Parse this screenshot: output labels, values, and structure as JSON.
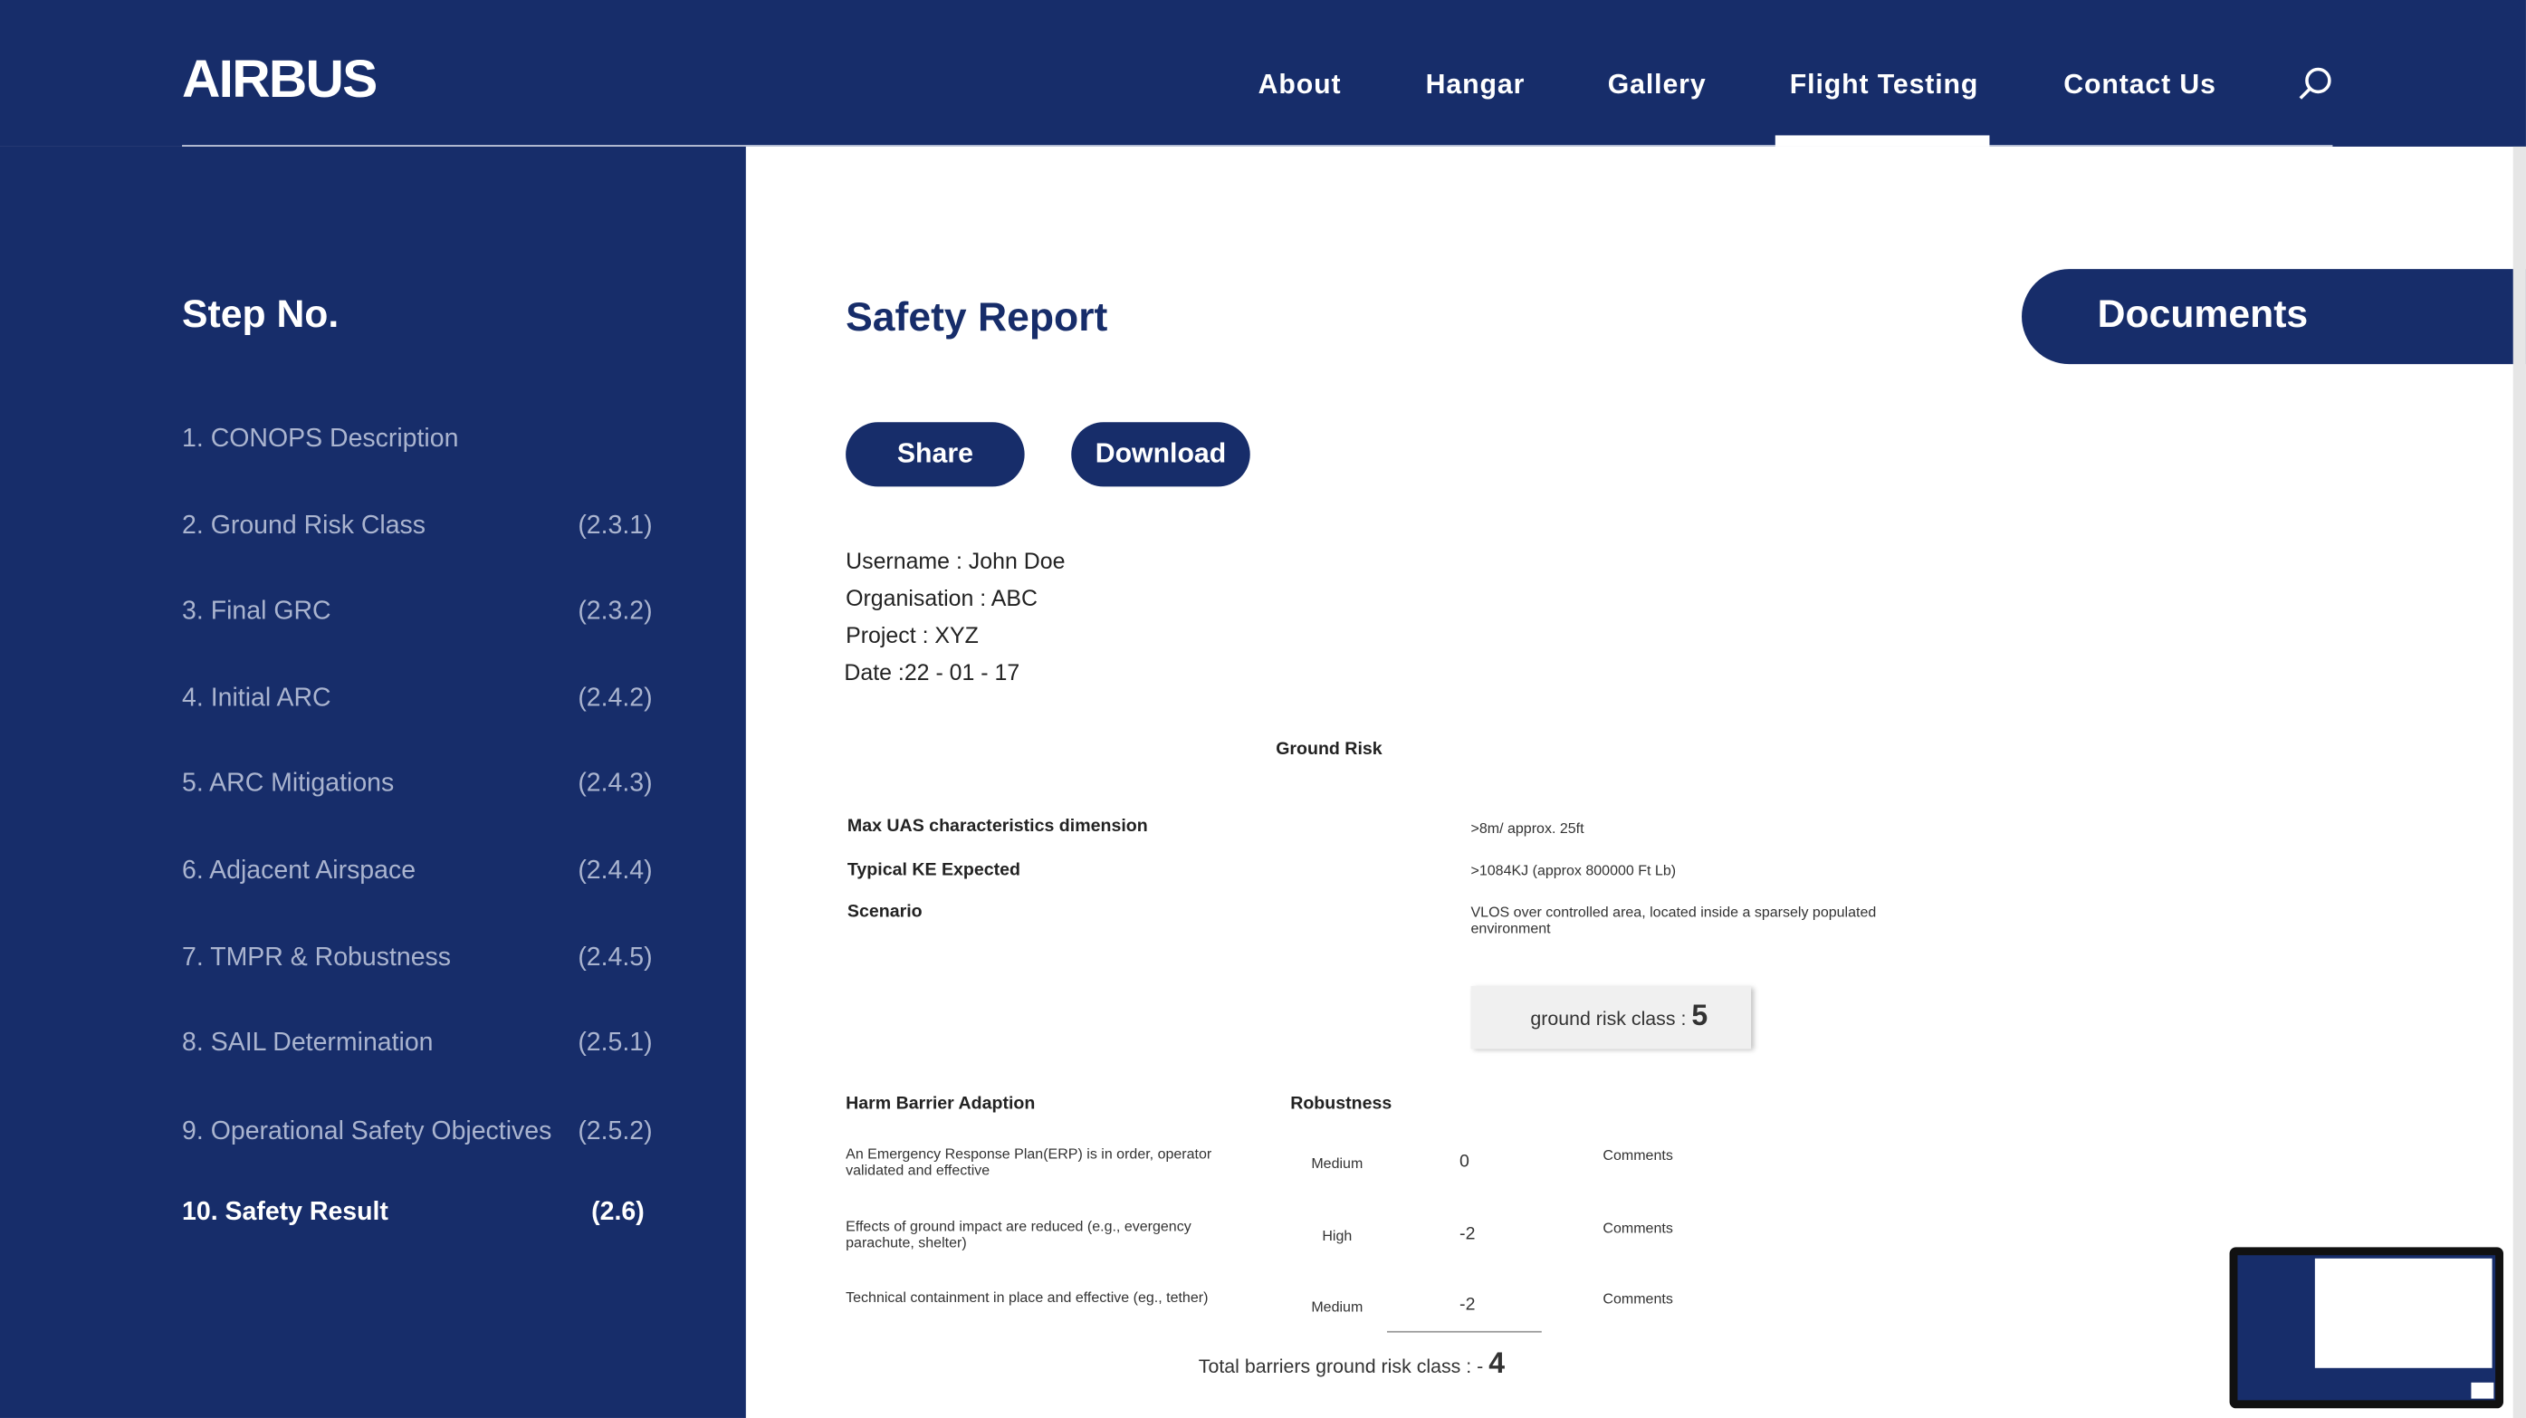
{
  "header": {
    "logo": "AIRBUS",
    "nav": [
      "About",
      "Hangar",
      "Gallery",
      "Flight Testing",
      "Contact Us"
    ],
    "active": "Flight Testing"
  },
  "sidebar": {
    "title": "Step No.",
    "steps": [
      {
        "label": "1. CONOPS Description",
        "code": null
      },
      {
        "label": "2. Ground Risk Class",
        "code": "(2.3.1)"
      },
      {
        "label": "3. Final GRC",
        "code": "(2.3.2)"
      },
      {
        "label": "4. Initial ARC",
        "code": "(2.4.2)"
      },
      {
        "label": "5. ARC Mitigations",
        "code": "(2.4.3)"
      },
      {
        "label": "6. Adjacent Airspace",
        "code": "(2.4.4)"
      },
      {
        "label": "7. TMPR & Robustness",
        "code": "(2.4.5)"
      },
      {
        "label": "8. SAIL Determination",
        "code": "(2.5.1)"
      },
      {
        "label": "9. Operational Safety Objectives",
        "code": "(2.5.2)"
      },
      {
        "label": "10. Safety Result",
        "code": "(2.6)"
      }
    ]
  },
  "report": {
    "title": "Safety Report",
    "documents": "Documents",
    "buttons": [
      "Share",
      "Download"
    ],
    "info": [
      "Username : John Doe",
      "Organisation : ABC",
      "Project : XYZ",
      "Date :22 - 01 - 17"
    ],
    "ground_risk": {
      "title": "Ground Risk",
      "rows": [
        [
          "Max UAS characteristics dimension",
          ">8m/ approx. 25ft"
        ],
        [
          "Typical KE Expected",
          ">1084KJ (approx 800000 Ft Lb)"
        ],
        [
          "Scenario",
          "VLOS over controlled area, located inside a sparsely populated environment"
        ]
      ],
      "class_label": "ground risk class :",
      "class_value": "5"
    },
    "barriers": {
      "headers": [
        "Harm Barrier Adaption",
        "Robustness"
      ],
      "rows": [
        [
          "An Emergency Response Plan(ERP) is in order, operator validated and effective",
          "Medium",
          "0",
          "Comments"
        ],
        [
          "Effects of ground impact are reduced (e.g., evergency parachute, shelter)",
          "High",
          "-2",
          "Comments"
        ],
        [
          "Technical containment in place and effective (eg., tether)",
          "Medium",
          "-2",
          "Comments"
        ]
      ],
      "total_label": "Total barriers ground risk class : -",
      "total_value": "4"
    }
  }
}
